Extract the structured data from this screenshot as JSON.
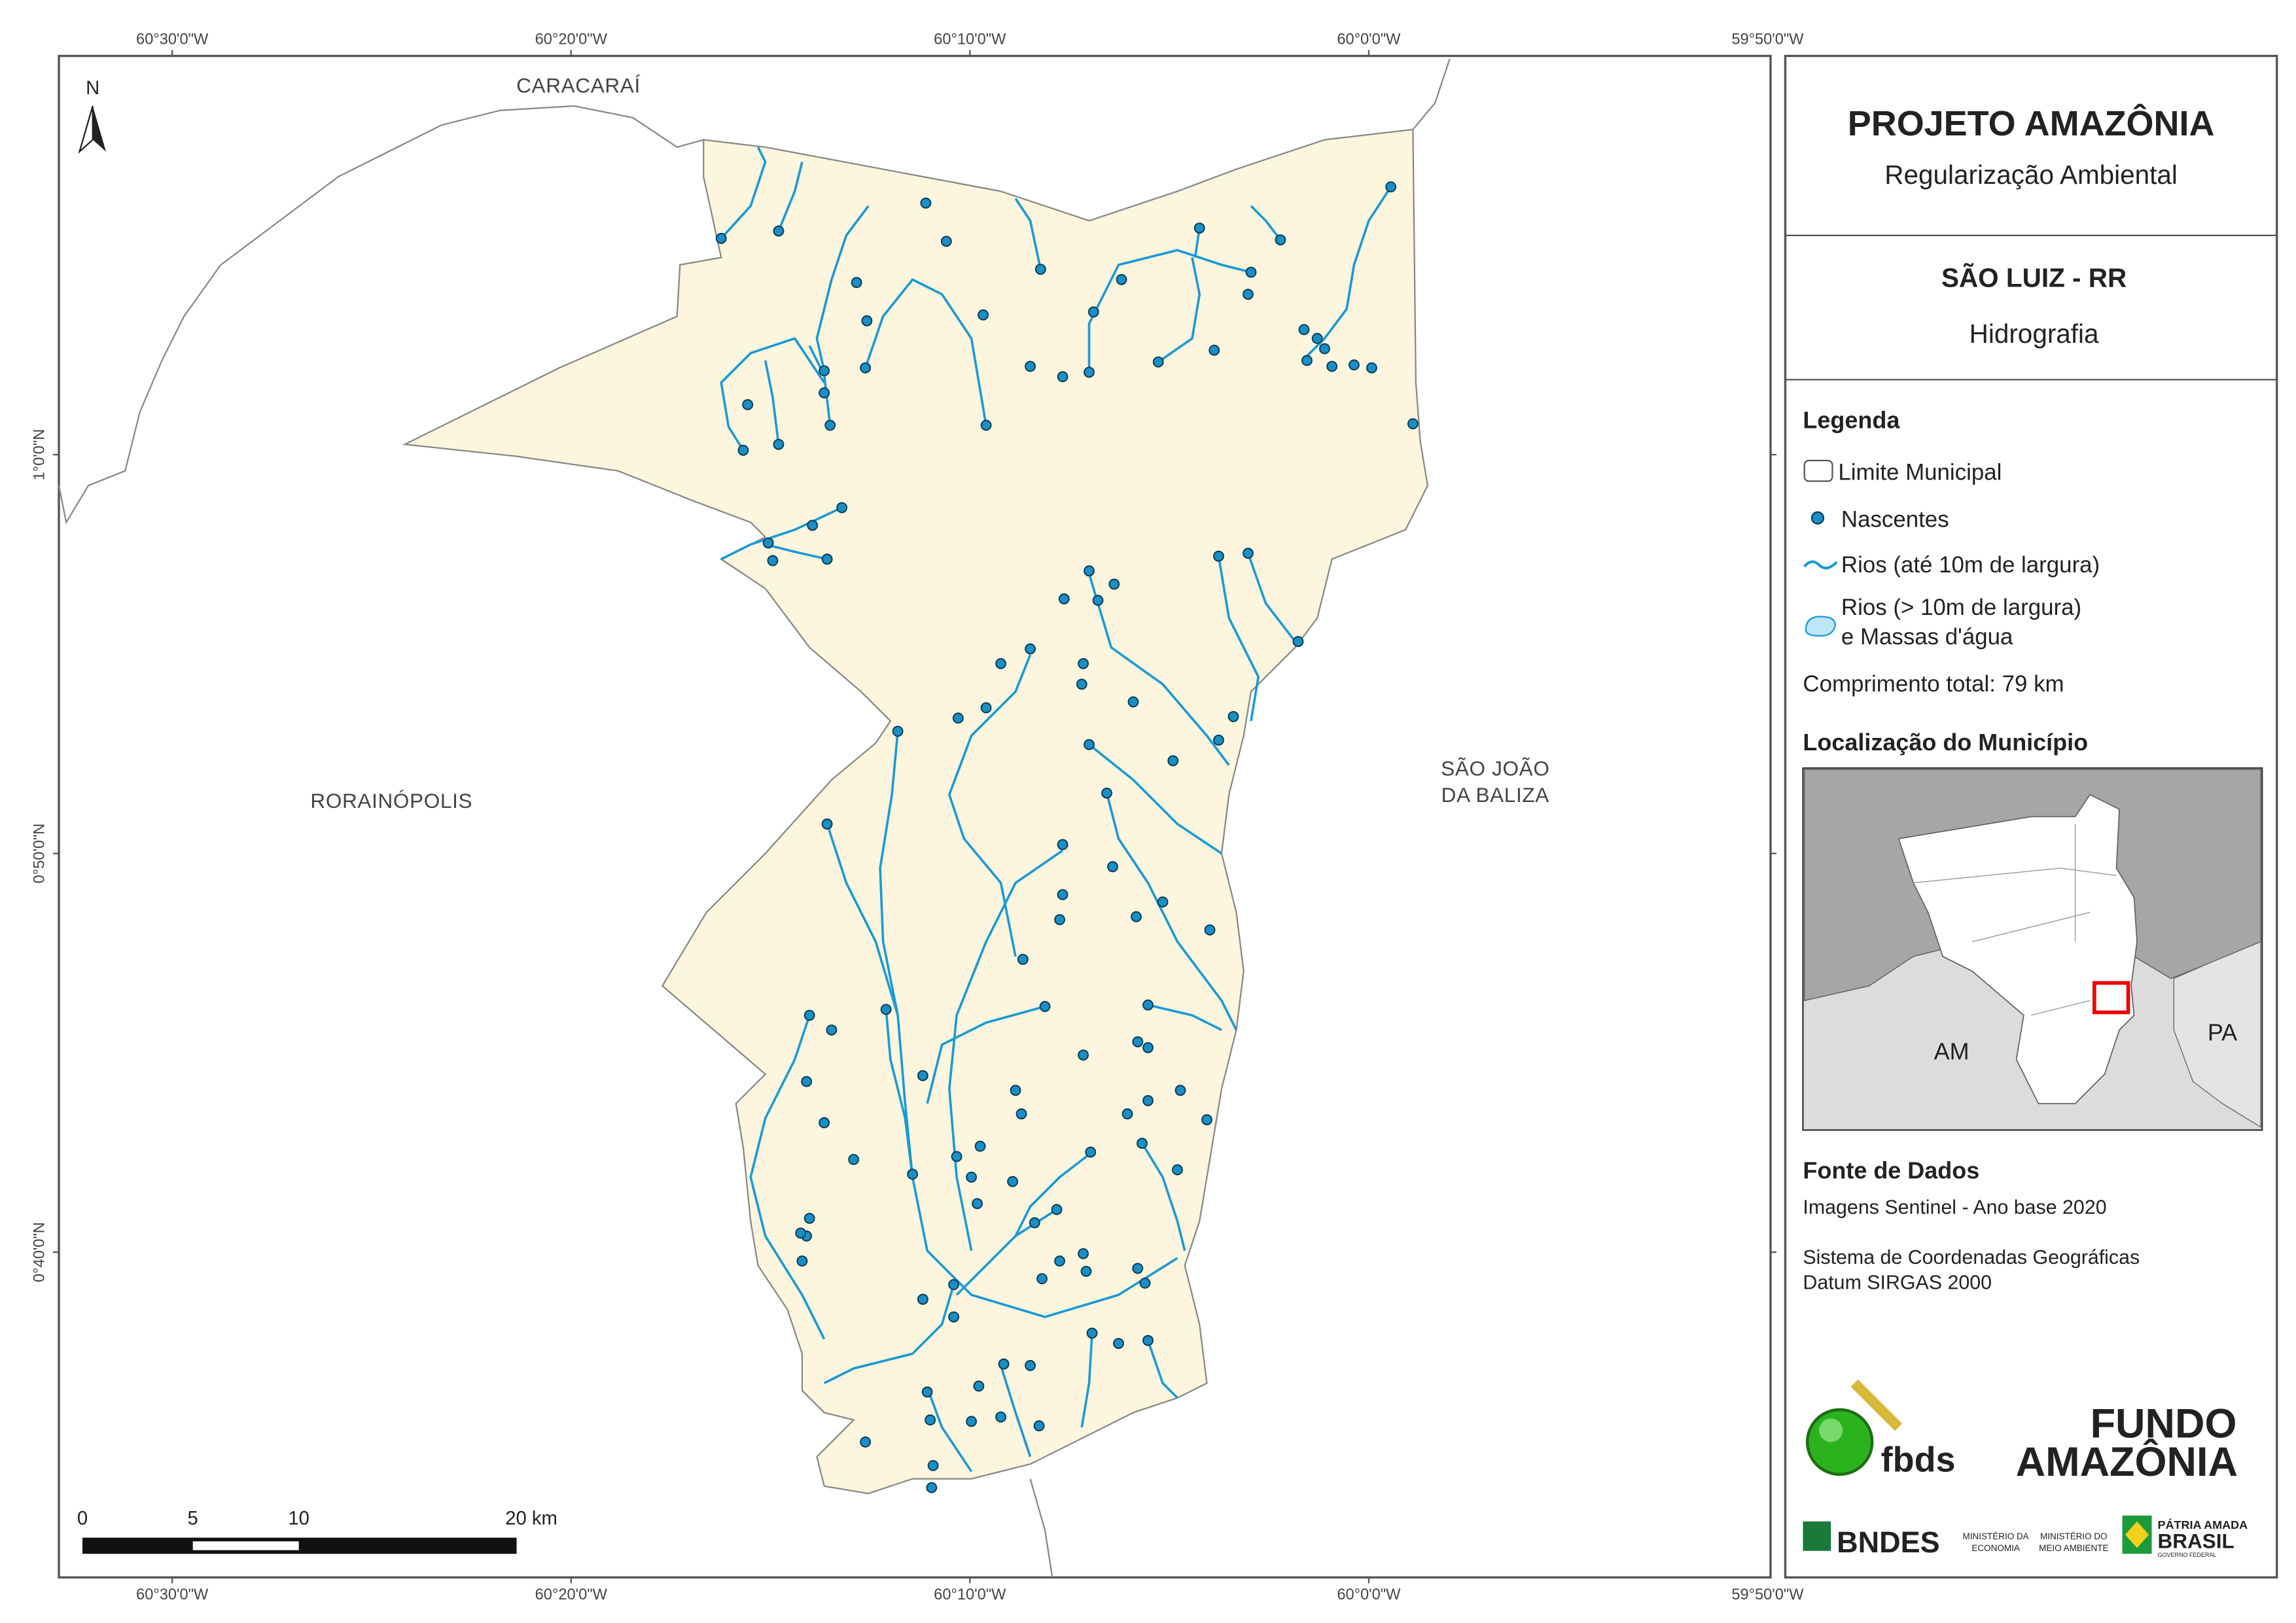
{
  "map": {
    "coords_top": [
      "60°30'0\"W",
      "60°20'0\"W",
      "60°10'0\"W",
      "60°0'0\"W",
      "59°50'0\"W"
    ],
    "coords_left": [
      "1°0'0\"N",
      "0°50'0\"N",
      "0°40'0\"N"
    ],
    "north": "N",
    "places": [
      "CARACARAÍ",
      "RORAINÓPOLIS",
      "SÃO JOÃO",
      "DA BALIZA"
    ],
    "scale": [
      "0",
      "5",
      "10",
      "20 km"
    ]
  },
  "panel": {
    "title": "PROJETO AMAZÔNIA",
    "subtitle": "Regularização Ambiental",
    "municipality": "SÃO LUIZ - RR",
    "theme": "Hidrografia",
    "legend": {
      "heading": "Legenda",
      "items": [
        "Limite Municipal",
        "Nascentes",
        "Rios (até 10m de largura)",
        "Rios (> 10m de largura)",
        "e Massas d'água"
      ],
      "total_length": "Comprimento total:  79 km"
    },
    "location": {
      "heading": "Localização do Município",
      "labels": [
        "AM",
        "PA"
      ]
    },
    "sources": {
      "heading": "Fonte de Dados",
      "lines": [
        "Imagens Sentinel - Ano base 2020",
        "Sistema de Coordenadas Geográficas",
        "Datum SIRGAS 2000"
      ]
    },
    "logos": [
      "fbds",
      "FUNDO",
      "AMAZÔNIA",
      "BNDES",
      "MINISTÉRIO DA",
      "ECONOMIA",
      "MINISTÉRIO DO",
      "MEIO AMBIENTE",
      "PÁTRIA AMADA",
      "BRASIL",
      "GOVERNO FEDERAL"
    ]
  }
}
